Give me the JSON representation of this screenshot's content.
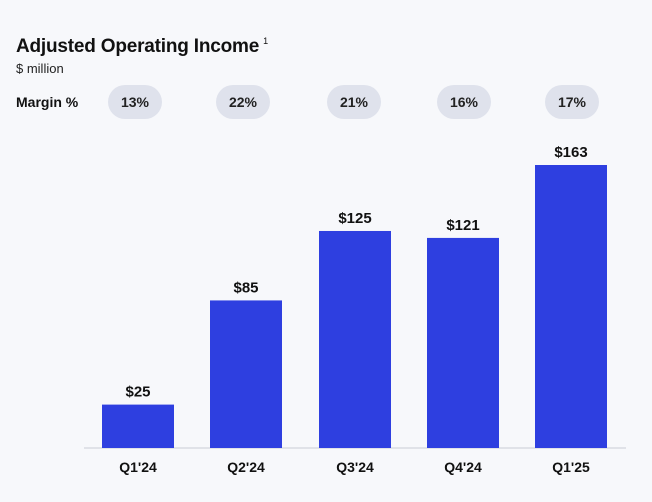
{
  "title": "Adjusted Operating Income",
  "title_footnote": "1",
  "subtitle": "$ million",
  "margin": {
    "label": "Margin %",
    "values": [
      "13%",
      "22%",
      "21%",
      "16%",
      "17%"
    ]
  },
  "chart_data": {
    "type": "bar",
    "categories": [
      "Q1'24",
      "Q2'24",
      "Q3'24",
      "Q4'24",
      "Q1'25"
    ],
    "values": [
      25,
      85,
      125,
      121,
      163
    ],
    "value_labels": [
      "$25",
      "$85",
      "$125",
      "$121",
      "$163"
    ],
    "title": "Adjusted Operating Income",
    "ylabel": "$ million",
    "ylim": [
      0,
      163
    ],
    "grid": false,
    "bar_color": "#2e3fe0",
    "axis_color": "#c8ccd6"
  }
}
